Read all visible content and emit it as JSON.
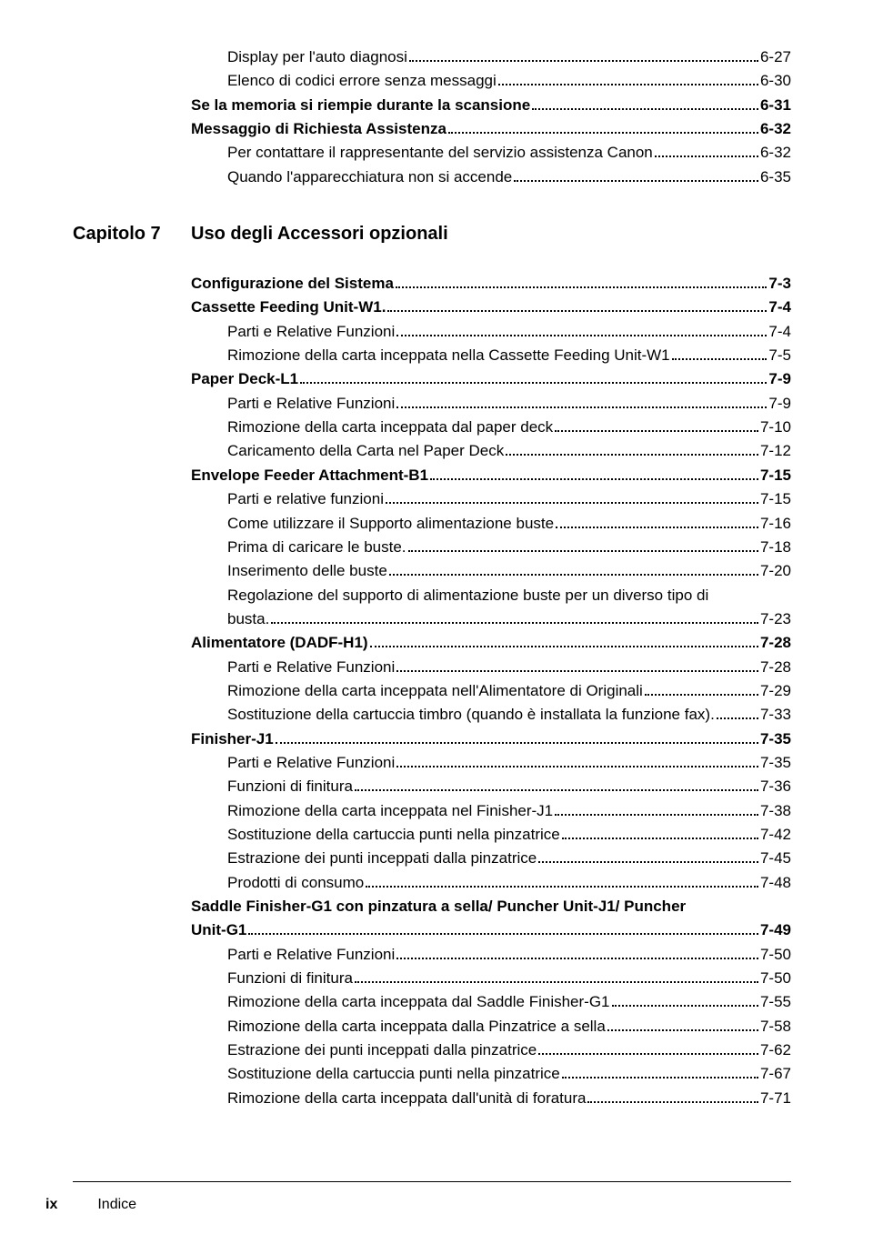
{
  "top_section": [
    {
      "label": "Display per l'auto diagnosi",
      "page": "6-27",
      "bold": false,
      "indent": 2
    },
    {
      "label": "Elenco di codici errore senza messaggi",
      "page": "6-30",
      "bold": false,
      "indent": 2
    },
    {
      "label": "Se la memoria si riempie durante la scansione",
      "page": "6-31",
      "bold": true,
      "indent": 1
    },
    {
      "label": "Messaggio di Richiesta Assistenza",
      "page": "6-32",
      "bold": true,
      "indent": 1
    },
    {
      "label": "Per contattare il rappresentante del servizio assistenza Canon",
      "page": "6-32",
      "bold": false,
      "indent": 2
    },
    {
      "label": "Quando l'apparecchiatura non si accende",
      "page": "6-35",
      "bold": false,
      "indent": 2
    }
  ],
  "chapter": {
    "label": "Capitolo 7",
    "title": "Uso degli Accessori opzionali"
  },
  "main_section": [
    {
      "label": "Configurazione del Sistema",
      "page": "7-3",
      "bold": true,
      "indent": 1
    },
    {
      "label": "Cassette Feeding Unit-W1.",
      "page": "7-4",
      "bold": true,
      "indent": 1
    },
    {
      "label": "Parti e Relative Funzioni",
      "page": "7-4",
      "bold": false,
      "indent": 2
    },
    {
      "label": "Rimozione della carta inceppata nella Cassette Feeding Unit-W1",
      "page": "7-5",
      "bold": false,
      "indent": 2
    },
    {
      "label": "Paper Deck-L1",
      "page": "7-9",
      "bold": true,
      "indent": 1
    },
    {
      "label": "Parti e Relative Funzioni",
      "page": "7-9",
      "bold": false,
      "indent": 2
    },
    {
      "label": "Rimozione della carta inceppata dal paper deck",
      "page": "7-10",
      "bold": false,
      "indent": 2
    },
    {
      "label": "Caricamento della Carta nel Paper Deck",
      "page": "7-12",
      "bold": false,
      "indent": 2
    },
    {
      "label": "Envelope Feeder Attachment-B1",
      "page": "7-15",
      "bold": true,
      "indent": 1
    },
    {
      "label": "Parti e relative funzioni",
      "page": "7-15",
      "bold": false,
      "indent": 2
    },
    {
      "label": "Come utilizzare il Supporto alimentazione buste",
      "page": "7-16",
      "bold": false,
      "indent": 2
    },
    {
      "label": "Prima di caricare le buste.",
      "page": "7-18",
      "bold": false,
      "indent": 2
    },
    {
      "label": "Inserimento delle buste",
      "page": "7-20",
      "bold": false,
      "indent": 2
    },
    {
      "type": "wrap",
      "lines": [
        "Regolazione del supporto di alimentazione buste per un diverso tipo di"
      ],
      "last_label": "busta.",
      "page": "7-23",
      "bold": false,
      "indent": 2
    },
    {
      "label": "Alimentatore (DADF-H1)",
      "page": "7-28",
      "bold": true,
      "indent": 1
    },
    {
      "label": "Parti e Relative Funzioni",
      "page": "7-28",
      "bold": false,
      "indent": 2
    },
    {
      "label": "Rimozione della carta inceppata nell'Alimentatore di Originali",
      "page": "7-29",
      "bold": false,
      "indent": 2
    },
    {
      "label": "Sostituzione della cartuccia timbro (quando è installata la funzione fax).",
      "page": "7-33",
      "bold": false,
      "indent": 2
    },
    {
      "label": "Finisher-J1",
      "page": "7-35",
      "bold": true,
      "indent": 1
    },
    {
      "label": "Parti e Relative Funzioni",
      "page": "7-35",
      "bold": false,
      "indent": 2
    },
    {
      "label": "Funzioni di finitura",
      "page": "7-36",
      "bold": false,
      "indent": 2
    },
    {
      "label": "Rimozione della carta inceppata nel Finisher-J1",
      "page": "7-38",
      "bold": false,
      "indent": 2
    },
    {
      "label": "Sostituzione della cartuccia punti nella pinzatrice",
      "page": "7-42",
      "bold": false,
      "indent": 2
    },
    {
      "label": "Estrazione dei punti inceppati dalla pinzatrice",
      "page": "7-45",
      "bold": false,
      "indent": 2
    },
    {
      "label": "Prodotti di consumo",
      "page": "7-48",
      "bold": false,
      "indent": 2
    },
    {
      "type": "wrap",
      "lines": [
        "Saddle Finisher-G1 con pinzatura a sella/ Puncher Unit-J1/ Puncher"
      ],
      "last_label": "Unit-G1",
      "page": "7-49",
      "bold": true,
      "indent": 1
    },
    {
      "label": "Parti e Relative Funzioni",
      "page": "7-50",
      "bold": false,
      "indent": 2
    },
    {
      "label": "Funzioni di finitura",
      "page": "7-50",
      "bold": false,
      "indent": 2
    },
    {
      "label": "Rimozione della carta inceppata dal Saddle Finisher-G1",
      "page": "7-55",
      "bold": false,
      "indent": 2
    },
    {
      "label": "Rimozione della carta inceppata dalla Pinzatrice a sella",
      "page": "7-58",
      "bold": false,
      "indent": 2
    },
    {
      "label": "Estrazione dei punti inceppati dalla pinzatrice",
      "page": "7-62",
      "bold": false,
      "indent": 2
    },
    {
      "label": "Sostituzione della cartuccia punti nella pinzatrice",
      "page": "7-67",
      "bold": false,
      "indent": 2
    },
    {
      "label": "Rimozione della carta inceppata dall'unità di foratura",
      "page": "7-71",
      "bold": false,
      "indent": 2
    }
  ],
  "footer": {
    "page_number": "ix",
    "section": "Indice"
  }
}
